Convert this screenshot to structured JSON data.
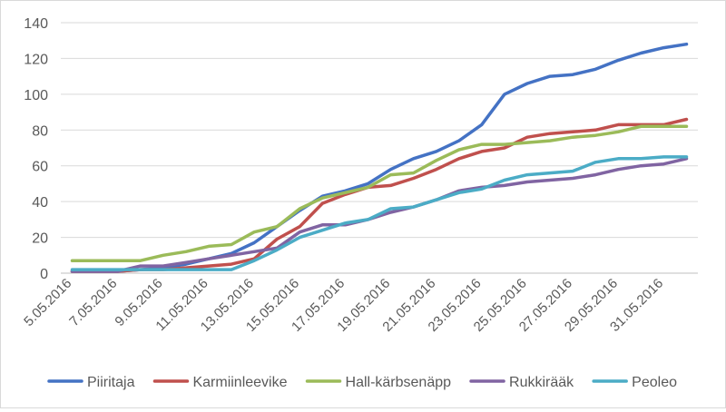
{
  "chart_data": {
    "type": "line",
    "title": "",
    "xlabel": "",
    "ylabel": "",
    "ylim": [
      0,
      140
    ],
    "yticks": [
      0,
      20,
      40,
      60,
      80,
      100,
      120,
      140
    ],
    "grid": "horizontal",
    "legend": "bottom",
    "x": [
      "5.05.2016",
      "6.05.2016",
      "7.05.2016",
      "8.05.2016",
      "9.05.2016",
      "10.05.2016",
      "11.05.2016",
      "12.05.2016",
      "13.05.2016",
      "14.05.2016",
      "15.05.2016",
      "16.05.2016",
      "17.05.2016",
      "18.05.2016",
      "19.05.2016",
      "20.05.2016",
      "21.05.2016",
      "22.05.2016",
      "23.05.2016",
      "24.05.2016",
      "25.05.2016",
      "26.05.2016",
      "27.05.2016",
      "28.05.2016",
      "29.05.2016",
      "30.05.2016",
      "31.05.2016",
      "1.06.2016"
    ],
    "xtick_labels": [
      "5.05.2016",
      "7.05.2016",
      "9.05.2016",
      "11.05.2016",
      "13.05.2016",
      "15.05.2016",
      "17.05.2016",
      "19.05.2016",
      "21.05.2016",
      "23.05.2016",
      "25.05.2016",
      "27.05.2016",
      "29.05.2016",
      "31.05.2016"
    ],
    "series": [
      {
        "name": "Piiritaja",
        "color": "#4472c4",
        "values": [
          1,
          1,
          1,
          2,
          3,
          5,
          8,
          11,
          17,
          26,
          35,
          43,
          46,
          50,
          58,
          64,
          68,
          74,
          83,
          100,
          106,
          110,
          111,
          114,
          119,
          123,
          126,
          128
        ]
      },
      {
        "name": "Karmiinleevike",
        "color": "#c0504d",
        "values": [
          1,
          1,
          1,
          2,
          2,
          3,
          4,
          5,
          8,
          19,
          26,
          39,
          44,
          48,
          49,
          53,
          58,
          64,
          68,
          70,
          76,
          78,
          79,
          80,
          83,
          83,
          83,
          86
        ]
      },
      {
        "name": "Hall-kärbsenäpp",
        "color": "#9bbb59",
        "values": [
          7,
          7,
          7,
          7,
          10,
          12,
          15,
          16,
          23,
          26,
          36,
          42,
          45,
          48,
          55,
          56,
          63,
          69,
          72,
          72,
          73,
          74,
          76,
          77,
          79,
          82,
          82,
          82
        ]
      },
      {
        "name": "Rukkirääk",
        "color": "#8064a2",
        "values": [
          1,
          1,
          1,
          4,
          4,
          6,
          8,
          10,
          12,
          14,
          23,
          27,
          27,
          30,
          34,
          37,
          41,
          46,
          48,
          49,
          51,
          52,
          53,
          55,
          58,
          60,
          61,
          64
        ]
      },
      {
        "name": "Peoleo",
        "color": "#4bacc6",
        "values": [
          2,
          2,
          2,
          2,
          2,
          2,
          2,
          2,
          7,
          13,
          20,
          24,
          28,
          30,
          36,
          37,
          41,
          45,
          47,
          52,
          55,
          56,
          57,
          62,
          64,
          64,
          65,
          65
        ]
      }
    ]
  }
}
